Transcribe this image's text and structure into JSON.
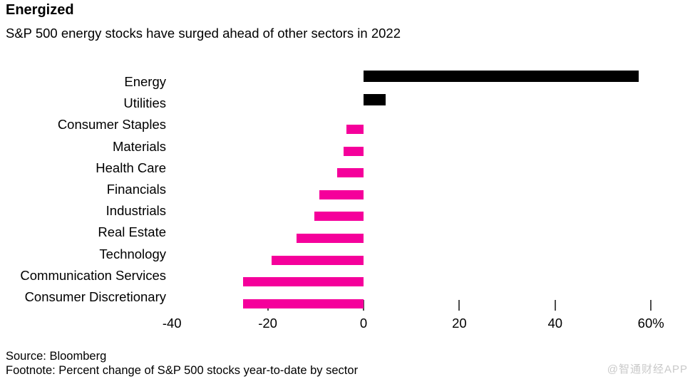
{
  "header": {
    "title": "Energized",
    "subtitle": "S&P 500 energy stocks have surged ahead of other sectors in 2022"
  },
  "chart_data": {
    "type": "bar",
    "orientation": "horizontal",
    "title": "Energized",
    "subtitle": "S&P 500 energy stocks have surged ahead of other sectors in 2022",
    "unit": "%",
    "categories": [
      "Energy",
      "Utilities",
      "Consumer Staples",
      "Materials",
      "Health Care",
      "Financials",
      "Industrials",
      "Real Estate",
      "Technology",
      "Communication Services",
      "Consumer Discretionary"
    ],
    "values": [
      57.5,
      4.6,
      -3.5,
      -4.2,
      -5.5,
      -9.3,
      -10.2,
      -14.0,
      -19.2,
      -25.2,
      -25.1
    ],
    "positive_color": "#000000",
    "negative_color": "#f5009b",
    "xlim": [
      -40,
      60
    ],
    "xtick_values": [
      -40,
      -20,
      0,
      20,
      40,
      60
    ],
    "xtick_labels": [
      "-40",
      "-20",
      "0",
      "20",
      "40",
      "60%"
    ],
    "grid": false,
    "legend": false
  },
  "footer": {
    "source": "Source: Bloomberg",
    "footnote": "Footnote: Percent change of S&P 500 stocks year-to-date by sector"
  },
  "watermark": "@智通财经APP"
}
